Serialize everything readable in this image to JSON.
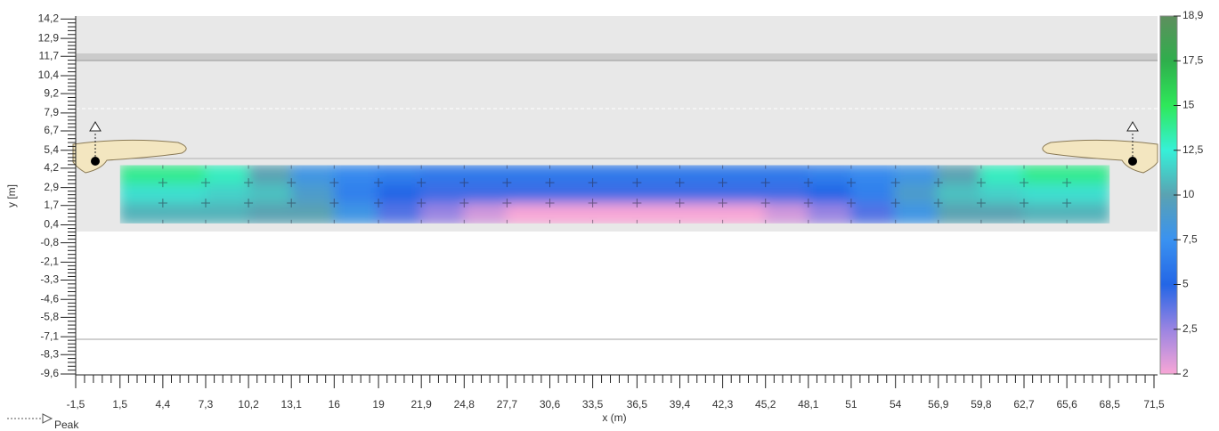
{
  "chart_data": {
    "type": "contour",
    "xlabel": "x (m)",
    "ylabel": "y [m]",
    "legend_label": "Peak",
    "xlim": [
      -1.5,
      71.5
    ],
    "ylim": [
      -9.6,
      14.4
    ],
    "xticks": [
      {
        "value": -1.5,
        "label": "-1,5"
      },
      {
        "value": 1.5,
        "label": "1,5"
      },
      {
        "value": 4.4,
        "label": "4,4"
      },
      {
        "value": 7.3,
        "label": "7,3"
      },
      {
        "value": 10.2,
        "label": "10,2"
      },
      {
        "value": 13.1,
        "label": "13,1"
      },
      16,
      19,
      {
        "value": 21.9,
        "label": "21,9"
      },
      {
        "value": 24.8,
        "label": "24,8"
      },
      {
        "value": 27.7,
        "label": "27,7"
      },
      {
        "value": 30.6,
        "label": "30,6"
      },
      {
        "value": 33.5,
        "label": "33,5"
      },
      {
        "value": 36.5,
        "label": "36,5"
      },
      {
        "value": 39.4,
        "label": "39,4"
      },
      {
        "value": 42.3,
        "label": "42,3"
      },
      {
        "value": 45.2,
        "label": "45,2"
      },
      {
        "value": 48.1,
        "label": "48,1"
      },
      51,
      54,
      {
        "value": 56.9,
        "label": "56,9"
      },
      {
        "value": 59.8,
        "label": "59,8"
      },
      {
        "value": 62.7,
        "label": "62,7"
      },
      {
        "value": 65.6,
        "label": "65,6"
      },
      {
        "value": 68.5,
        "label": "68,5"
      },
      {
        "value": 71.5,
        "label": "71,5"
      }
    ],
    "yticks": [
      {
        "value": 14.2,
        "label": "14,2"
      },
      {
        "value": 12.9,
        "label": "12,9"
      },
      {
        "value": 11.7,
        "label": "11,7"
      },
      {
        "value": 10.4,
        "label": "10,4"
      },
      {
        "value": 9.2,
        "label": "9,2"
      },
      {
        "value": 7.9,
        "label": "7,9"
      },
      {
        "value": 6.7,
        "label": "6,7"
      },
      {
        "value": 5.4,
        "label": "5,4"
      },
      {
        "value": 4.2,
        "label": "4,2"
      },
      {
        "value": 2.9,
        "label": "2,9"
      },
      {
        "value": 1.7,
        "label": "1,7"
      },
      {
        "value": 0.4,
        "label": "0,4"
      },
      {
        "value": -0.8,
        "label": "-0,8"
      },
      {
        "value": -2.1,
        "label": "-2,1"
      },
      {
        "value": -3.3,
        "label": "-3,3"
      },
      {
        "value": -4.6,
        "label": "-4,6"
      },
      {
        "value": -5.8,
        "label": "-5,8"
      },
      {
        "value": -7.1,
        "label": "-7,1"
      },
      {
        "value": -8.3,
        "label": "-8,3"
      },
      {
        "value": -9.6,
        "label": "-9,6"
      }
    ],
    "zticks": [
      {
        "value": 18.9,
        "label": "18,9"
      },
      {
        "value": 17.5,
        "label": "17,5"
      },
      15,
      {
        "value": 12.5,
        "label": "12,5"
      },
      10,
      {
        "value": 7.5,
        "label": "7,5"
      },
      5,
      {
        "value": 2.5,
        "label": "2,5"
      },
      2
    ],
    "colorscale": [
      "#5e8f5e",
      "#2fae4c",
      "#2ee85a",
      "#36f0d8",
      "#5aa2b2",
      "#3a92f0",
      "#2466e6",
      "#9a84e2",
      "#f8a6d6"
    ],
    "field": {
      "x": [
        1.5,
        68.5
      ],
      "y": [
        0.5,
        4.4
      ],
      "z": [
        [
          14,
          14,
          13,
          10,
          8,
          7,
          6.5,
          6,
          6,
          6,
          6,
          6,
          6,
          6,
          6,
          6,
          6.5,
          7,
          8,
          10,
          13,
          14,
          14
        ],
        [
          12,
          12,
          11.5,
          11,
          9,
          6.5,
          5,
          4.5,
          4.5,
          4.5,
          4.5,
          4.5,
          4.5,
          4.5,
          4.5,
          4.5,
          5,
          6.5,
          9,
          11,
          11.5,
          12,
          12
        ],
        [
          10.5,
          10.5,
          10.5,
          10,
          10,
          8,
          4,
          2.5,
          2.2,
          2,
          2,
          2,
          2,
          2,
          2,
          2.2,
          2.5,
          4,
          8,
          10,
          10,
          10.5,
          10.5
        ]
      ]
    }
  }
}
